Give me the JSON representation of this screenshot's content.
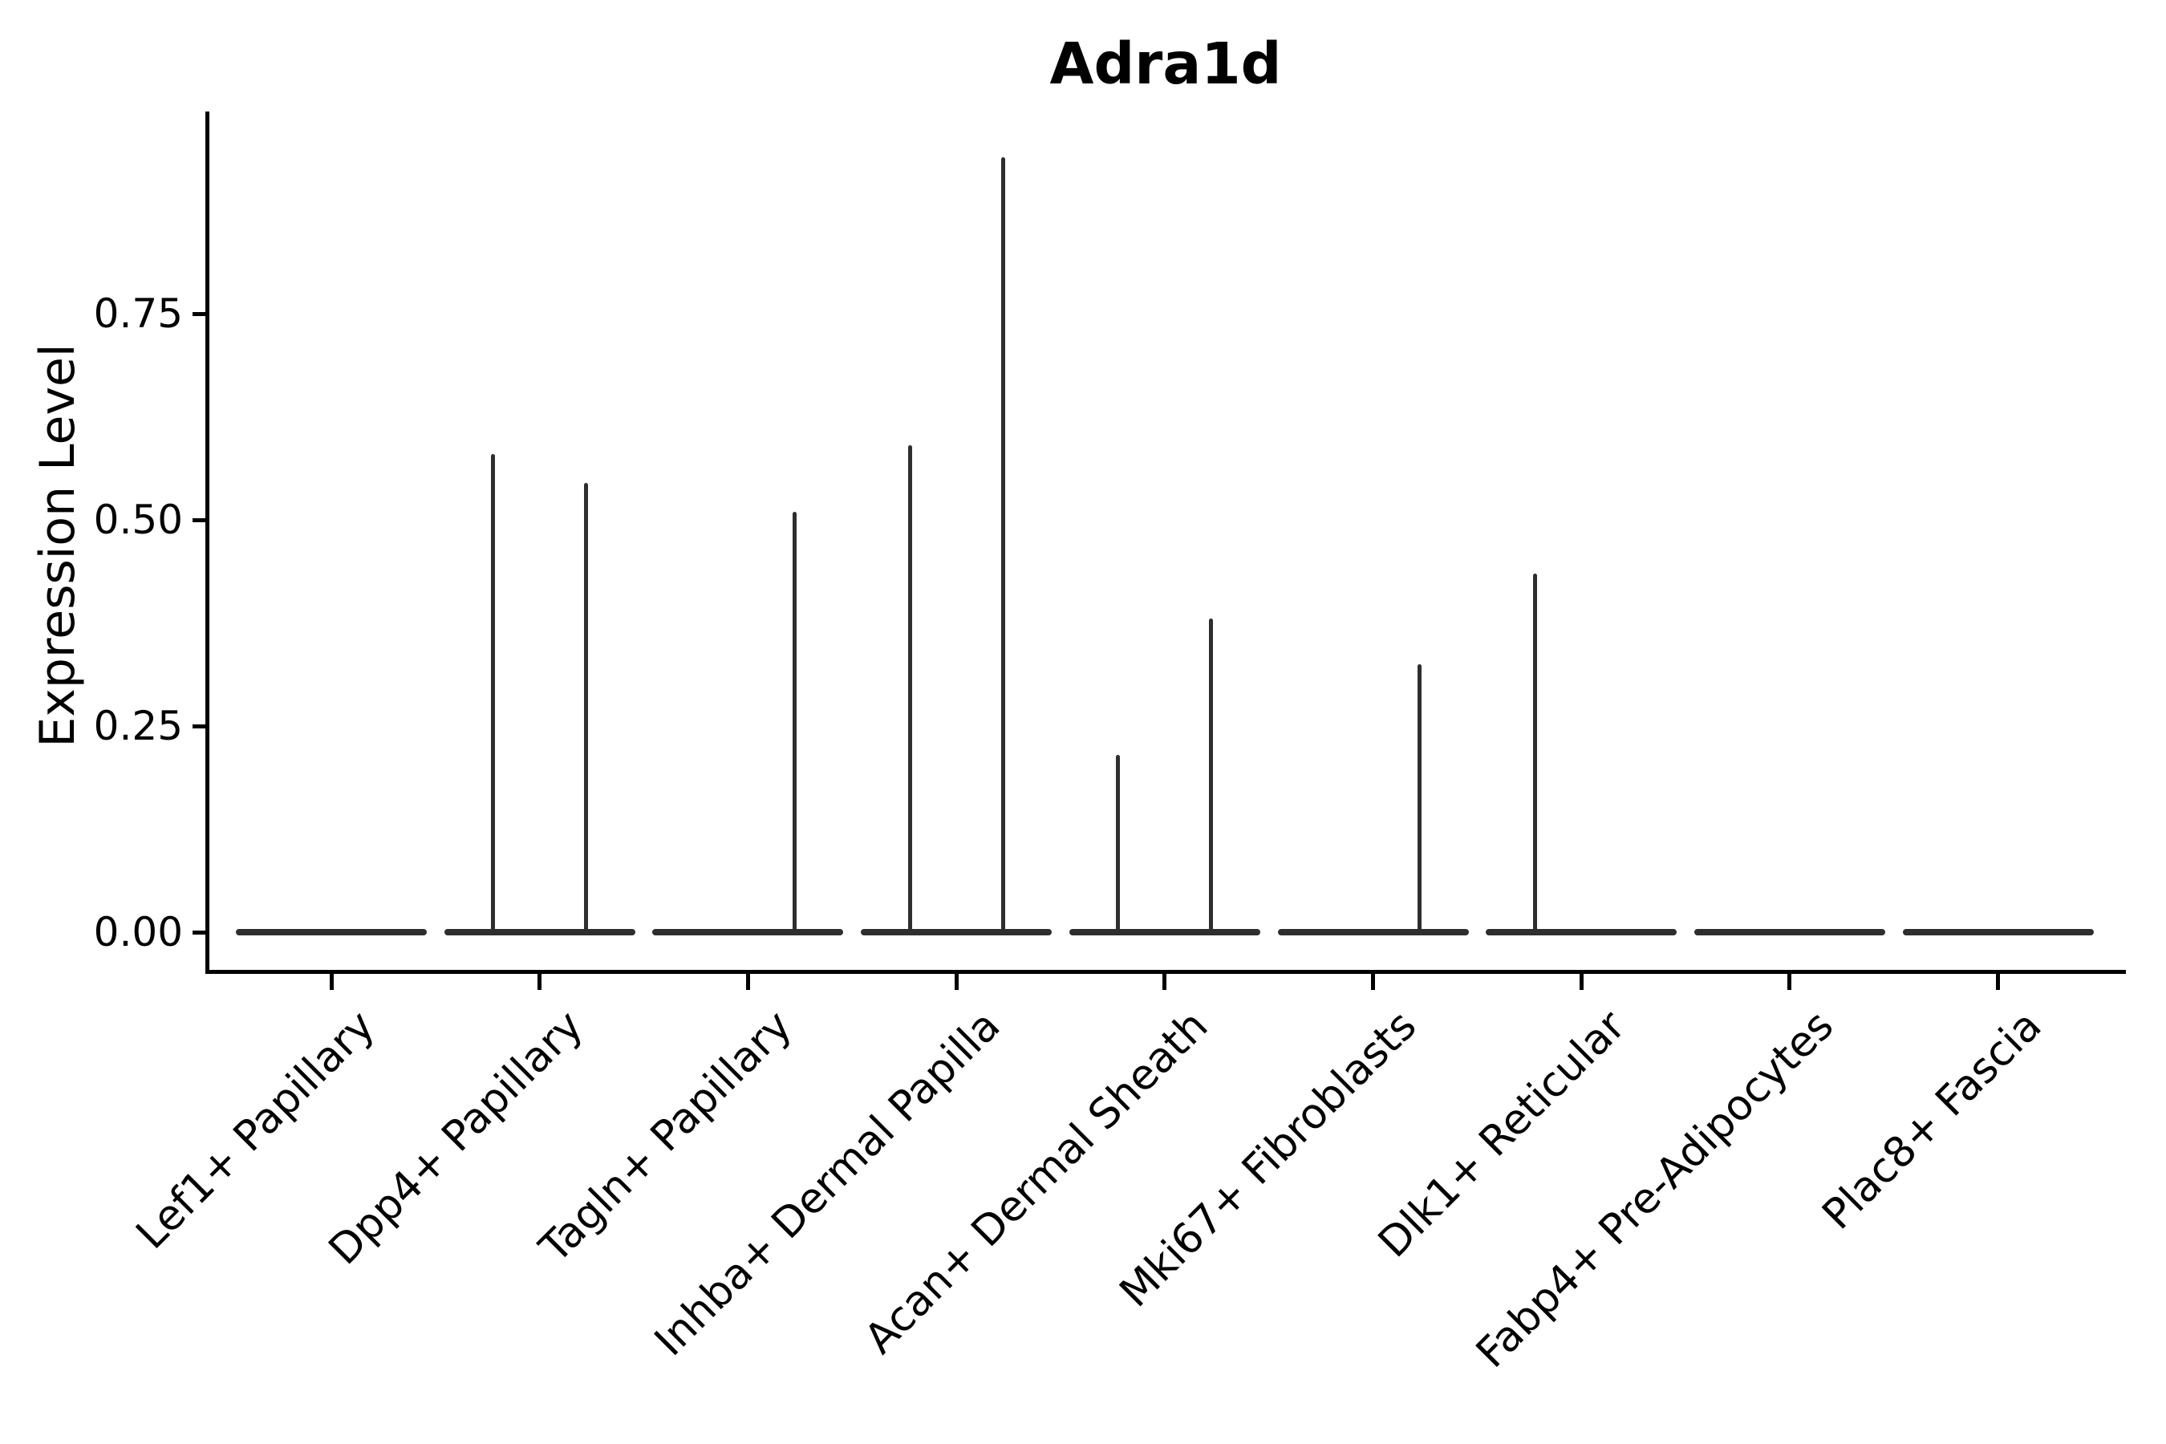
{
  "title": "Adra1d",
  "y_axis": {
    "label": "Expression Level",
    "tick_labels": [
      "0.00",
      "0.25",
      "0.50",
      "0.75"
    ],
    "tick_values": [
      0,
      0.25,
      0.5,
      0.75
    ]
  },
  "colors": {
    "violin": "#2e2e2e",
    "axis": "#000000",
    "text": "#000000",
    "background": "#ffffff"
  },
  "chart_data": {
    "type": "violin",
    "title": "Adra1d",
    "xlabel": "",
    "ylabel": "Expression Level",
    "ylim": [
      0,
      1.0
    ],
    "grid": false,
    "legend": "none",
    "baseline_value": 0,
    "categories": [
      "Lef1+ Papillary",
      "Dpp4+ Papillary",
      "Tagln+ Papillary",
      "Inhba+ Dermal Papilla",
      "Acan+ Dermal Sheath",
      "Mki67+ Fibroblasts",
      "Dlk1+ Reticular",
      "Fabp4+ Pre-Adipocytes",
      "Plac8+ Fascia"
    ],
    "violins": [
      {
        "label": "Lef1+ Papillary",
        "spikes": []
      },
      {
        "label": "Dpp4+ Papillary",
        "spikes": [
          {
            "side": "left",
            "value": 0.58
          },
          {
            "side": "right",
            "value": 0.545
          }
        ]
      },
      {
        "label": "Tagln+ Papillary",
        "spikes": [
          {
            "side": "right",
            "value": 0.51
          }
        ]
      },
      {
        "label": "Inhba+ Dermal Papilla",
        "spikes": [
          {
            "side": "left",
            "value": 0.59
          },
          {
            "side": "right",
            "value": 0.94
          }
        ]
      },
      {
        "label": "Acan+ Dermal Sheath",
        "spikes": [
          {
            "side": "left",
            "value": 0.215
          },
          {
            "side": "right",
            "value": 0.38
          }
        ]
      },
      {
        "label": "Mki67+ Fibroblasts",
        "spikes": [
          {
            "side": "right",
            "value": 0.325
          }
        ]
      },
      {
        "label": "Dlk1+ Reticular",
        "spikes": [
          {
            "side": "left",
            "value": 0.435
          }
        ]
      },
      {
        "label": "Fabp4+ Pre-Adipocytes",
        "spikes": []
      },
      {
        "label": "Plac8+ Fascia",
        "spikes": []
      }
    ]
  }
}
